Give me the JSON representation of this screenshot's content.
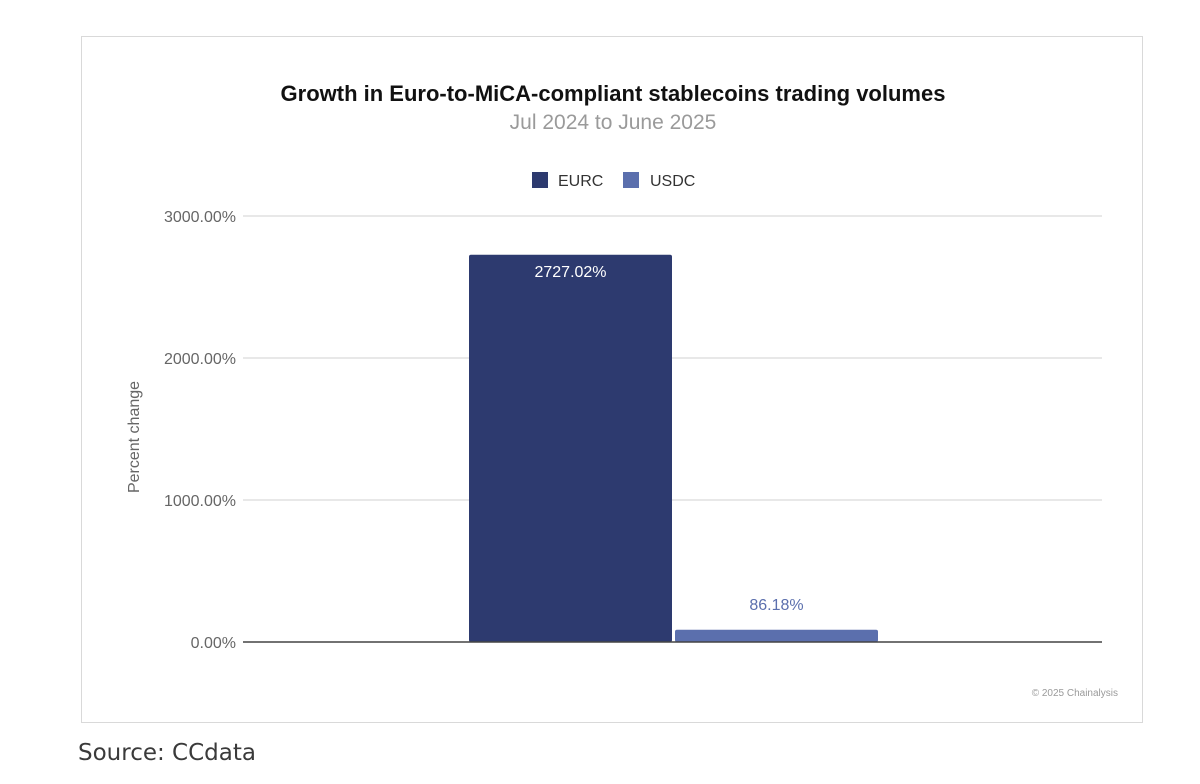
{
  "chart_data": {
    "type": "bar",
    "title": "Growth in Euro-to-MiCA-compliant stablecoins trading volumes",
    "subtitle": "Jul 2024 to June 2025",
    "ylabel": "Percent change",
    "xlabel": "",
    "ylim": [
      0,
      3000
    ],
    "yticks": [
      0,
      1000,
      2000,
      3000
    ],
    "ytick_labels": [
      "0.00%",
      "1000.00%",
      "2000.00%",
      "3000.00%"
    ],
    "grid": true,
    "legend_position": "top-center",
    "series": [
      {
        "name": "EURC",
        "values": [
          2727.02
        ],
        "label": "2727.02%",
        "color": "#2d3a6f",
        "label_color": "#ffffff"
      },
      {
        "name": "USDC",
        "values": [
          86.18
        ],
        "label": "86.18%",
        "color": "#5b6fad",
        "label_color": "#5b6fad"
      }
    ],
    "copyright": "© 2025 Chainalysis"
  },
  "footer": {
    "source": "Source: CCdata"
  },
  "colors": {
    "grid": "#d0d0d0",
    "axis": "#444444",
    "title": "#111111",
    "subtitle": "#9a9a9a",
    "tick": "#666666"
  }
}
